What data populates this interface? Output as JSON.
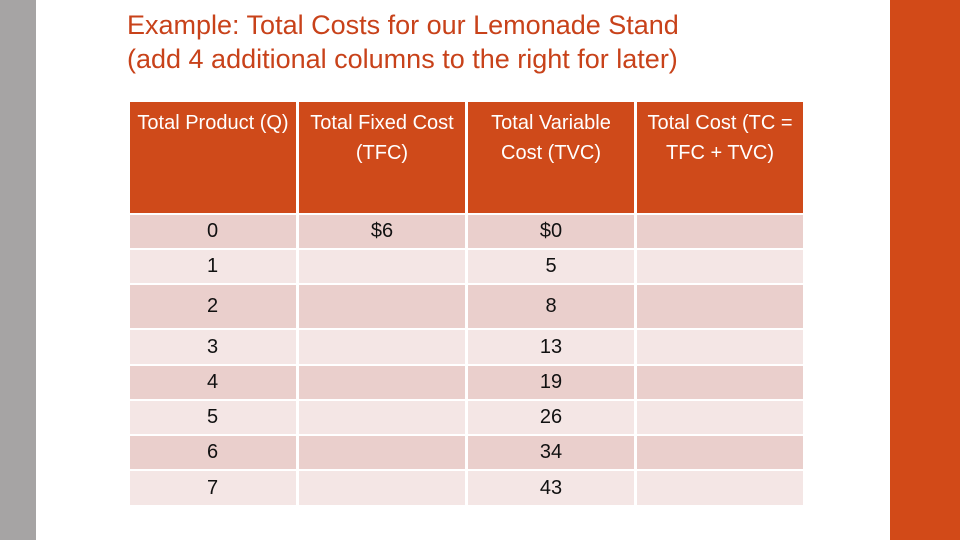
{
  "title": {
    "line1": "Example: Total Costs for our Lemonade Stand",
    "line2": "(add 4 additional columns to the right for later)"
  },
  "table": {
    "headers": [
      "Total Product (Q)",
      "Total Fixed Cost (TFC)",
      "Total Variable Cost (TVC)",
      "Total Cost (TC = TFC + TVC)"
    ],
    "rows": [
      {
        "q": "0",
        "tfc": "$6",
        "tvc": "$0",
        "tc": ""
      },
      {
        "q": "1",
        "tfc": "",
        "tvc": "5",
        "tc": ""
      },
      {
        "q": "2",
        "tfc": "",
        "tvc": "8",
        "tc": ""
      },
      {
        "q": "3",
        "tfc": "",
        "tvc": "13",
        "tc": ""
      },
      {
        "q": "4",
        "tfc": "",
        "tvc": "19",
        "tc": ""
      },
      {
        "q": "5",
        "tfc": "",
        "tvc": "26",
        "tc": ""
      },
      {
        "q": "6",
        "tfc": "",
        "tvc": "34",
        "tc": ""
      },
      {
        "q": "7",
        "tfc": "",
        "tvc": "43",
        "tc": ""
      }
    ]
  },
  "colors": {
    "accent": "#cf4a1a",
    "left_bar": "#a6a4a4",
    "row_dark": "#eacfcc",
    "row_light": "#f4e6e5"
  }
}
